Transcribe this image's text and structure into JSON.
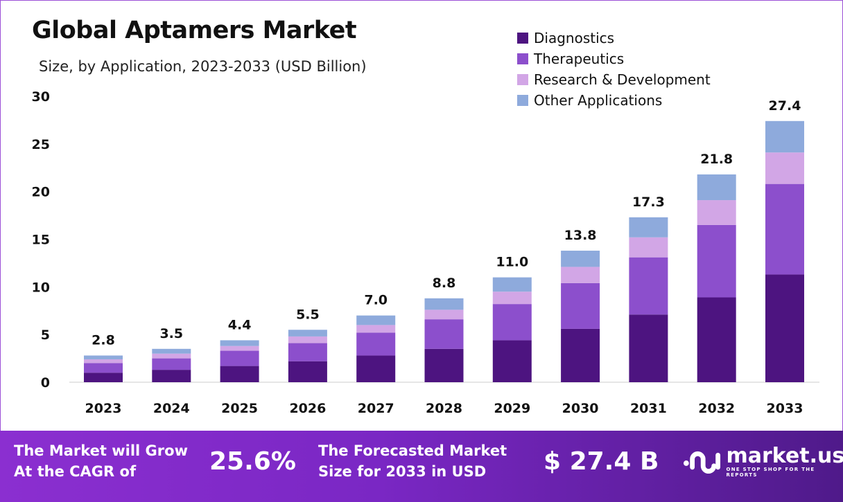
{
  "chart_data": {
    "type": "bar",
    "stacked": true,
    "title": "Global Aptamers Market",
    "subtitle": "Size, by Application, 2023-2033 (USD Billion)",
    "xlabel": "",
    "ylabel": "",
    "ylim": [
      0,
      30
    ],
    "yticks": [
      0,
      5,
      10,
      15,
      20,
      25,
      30
    ],
    "grid": false,
    "legend_position": "top-right",
    "categories": [
      "2023",
      "2024",
      "2025",
      "2026",
      "2027",
      "2028",
      "2029",
      "2030",
      "2031",
      "2032",
      "2033"
    ],
    "totals": [
      "2.8",
      "3.5",
      "4.4",
      "5.5",
      "7.0",
      "8.8",
      "11.0",
      "13.8",
      "17.3",
      "21.8",
      "27.4"
    ],
    "series": [
      {
        "name": "Diagnostics",
        "color": "#4d1480",
        "values": [
          1.0,
          1.3,
          1.7,
          2.2,
          2.8,
          3.5,
          4.4,
          5.6,
          7.1,
          8.9,
          11.3
        ]
      },
      {
        "name": "Therapeutics",
        "color": "#8c4fcc",
        "values": [
          1.0,
          1.2,
          1.6,
          1.9,
          2.4,
          3.1,
          3.8,
          4.8,
          6.0,
          7.6,
          9.5
        ]
      },
      {
        "name": "Research & Development",
        "color": "#d2a6e6",
        "values": [
          0.4,
          0.5,
          0.5,
          0.7,
          0.8,
          1.0,
          1.3,
          1.7,
          2.1,
          2.6,
          3.3
        ]
      },
      {
        "name": "Other Applications",
        "color": "#8eaadc",
        "values": [
          0.4,
          0.5,
          0.6,
          0.7,
          1.0,
          1.2,
          1.5,
          1.7,
          2.1,
          2.7,
          3.3
        ]
      }
    ]
  },
  "footer": {
    "cagr_label_1": "The Market will Grow",
    "cagr_label_2": "At the CAGR of",
    "cagr_value": "25.6%",
    "forecast_label_1": "The Forecasted Market",
    "forecast_label_2": "Size for 2033 in USD",
    "forecast_value": "$ 27.4 B",
    "logo_name": "market.us",
    "logo_tagline": "ONE STOP SHOP FOR THE REPORTS"
  }
}
